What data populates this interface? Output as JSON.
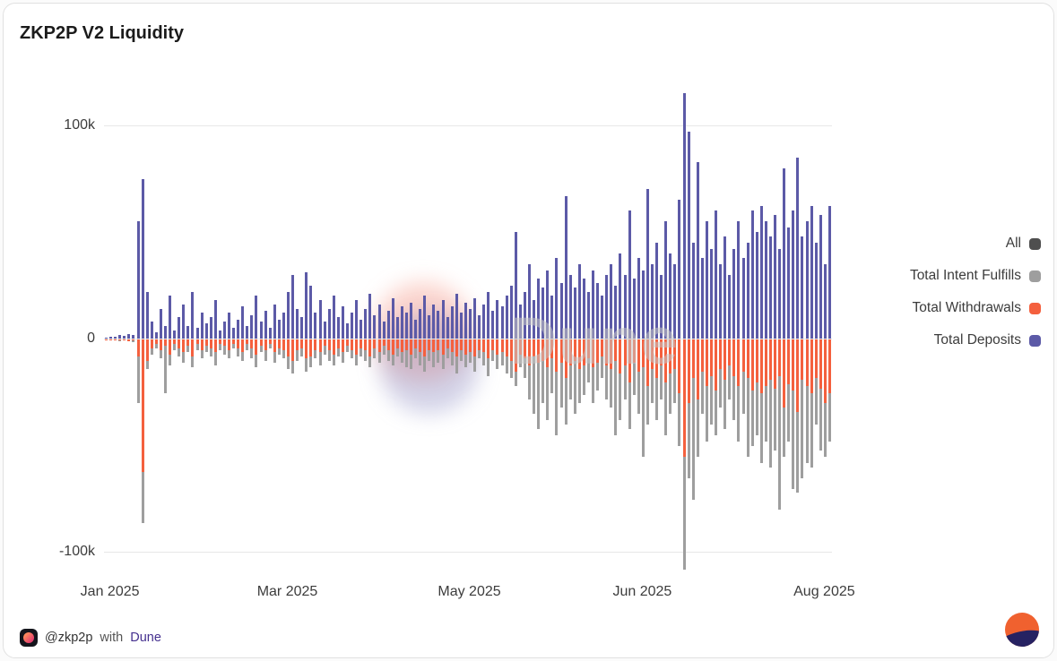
{
  "title": "ZKP2P V2 Liquidity",
  "watermark": "Dune",
  "footer": {
    "handle": "@zkp2p",
    "connector": "with",
    "brand": "Dune"
  },
  "colors": {
    "deposits": "#5C5AA7",
    "withdrawals": "#F4603E",
    "intent_fulfills": "#9E9E9E",
    "all_swatch": "#4F4F4F",
    "grid": "#E7E7E7",
    "dune_orange": "#F0612F",
    "dune_navy": "#262262"
  },
  "legend": [
    {
      "label": "All",
      "color": "#4F4F4F"
    },
    {
      "label": "Total Intent Fulfills",
      "color": "#9E9E9E"
    },
    {
      "label": "Total Withdrawals",
      "color": "#F4603E"
    },
    {
      "label": "Total Deposits",
      "color": "#5C5AA7"
    }
  ],
  "chart_data": {
    "type": "bar",
    "title": "ZKP2P V2 Liquidity",
    "xlabel": "",
    "ylabel": "",
    "values_unit": "thousands",
    "ylim_k": [
      -120,
      120
    ],
    "grid": true,
    "legend_position": "right",
    "yticks": [
      {
        "label": "100k",
        "value_k": 100
      },
      {
        "label": "0",
        "value_k": 0
      },
      {
        "label": "-100k",
        "value_k": -100
      }
    ],
    "xticks": [
      {
        "label": "Jan 2025",
        "index": 1
      },
      {
        "label": "Mar 2025",
        "index": 40
      },
      {
        "label": "May 2025",
        "index": 80
      },
      {
        "label": "Jun 2025",
        "index": 118
      },
      {
        "label": "Aug 2025",
        "index": 158
      }
    ],
    "series": [
      {
        "name": "Total Deposits",
        "color": "#5C5AA7",
        "values_k": [
          0.5,
          1,
          0.8,
          1.5,
          1.2,
          2,
          1.5,
          55,
          75,
          22,
          8,
          3,
          14,
          6,
          20,
          4,
          10,
          16,
          6,
          22,
          5,
          12,
          7,
          10,
          18,
          4,
          8,
          12,
          5,
          9,
          15,
          6,
          11,
          20,
          8,
          13,
          5,
          16,
          9,
          12,
          22,
          30,
          14,
          10,
          31,
          25,
          12,
          18,
          8,
          14,
          20,
          10,
          15,
          7,
          12,
          18,
          9,
          14,
          21,
          11,
          16,
          8,
          13,
          19,
          10,
          15,
          12,
          17,
          9,
          14,
          20,
          11,
          16,
          13,
          18,
          10,
          15,
          21,
          12,
          17,
          14,
          19,
          11,
          16,
          22,
          13,
          18,
          15,
          20,
          25,
          50,
          16,
          22,
          35,
          18,
          28,
          24,
          32,
          20,
          38,
          26,
          67,
          30,
          24,
          35,
          28,
          22,
          32,
          26,
          20,
          30,
          35,
          25,
          40,
          30,
          60,
          28,
          38,
          32,
          70,
          35,
          45,
          30,
          55,
          40,
          35,
          65,
          115,
          97,
          45,
          83,
          38,
          55,
          42,
          60,
          35,
          48,
          30,
          42,
          55,
          38,
          45,
          60,
          50,
          62,
          55,
          48,
          58,
          42,
          80,
          52,
          60,
          85,
          48,
          55,
          62,
          45,
          58,
          35,
          62
        ]
      },
      {
        "name": "Total Withdrawals",
        "color": "#F4603E",
        "values_k": [
          -0.2,
          -0.4,
          -0.3,
          -0.5,
          -0.4,
          -0.8,
          -0.6,
          -8,
          -62,
          -10,
          -4,
          -2,
          -5,
          -3,
          -7,
          -2,
          -4,
          -6,
          -3,
          -8,
          -2,
          -5,
          -3,
          -4,
          -6,
          -2,
          -3,
          -5,
          -2,
          -4,
          -6,
          -2,
          -4,
          -7,
          -3,
          -5,
          -2,
          -6,
          -4,
          -5,
          -8,
          -10,
          -5,
          -4,
          -9,
          -8,
          -5,
          -6,
          -3,
          -5,
          -7,
          -4,
          -6,
          -3,
          -5,
          -7,
          -4,
          -5,
          -8,
          -4,
          -6,
          -3,
          -5,
          -7,
          -4,
          -6,
          -5,
          -7,
          -4,
          -6,
          -8,
          -5,
          -6,
          -5,
          -7,
          -4,
          -6,
          -8,
          -5,
          -7,
          -6,
          -8,
          -5,
          -6,
          -9,
          -5,
          -7,
          -6,
          -8,
          -10,
          -15,
          -7,
          -9,
          -12,
          -8,
          -11,
          -10,
          -13,
          -9,
          -15,
          -11,
          -18,
          -12,
          -10,
          -14,
          -12,
          -9,
          -13,
          -11,
          -8,
          -12,
          -14,
          -10,
          -16,
          -12,
          -20,
          -11,
          -15,
          -13,
          -22,
          -14,
          -18,
          -12,
          -20,
          -16,
          -14,
          -25,
          -55,
          -30,
          -18,
          -28,
          -15,
          -22,
          -17,
          -24,
          -14,
          -19,
          -12,
          -17,
          -22,
          -15,
          -18,
          -24,
          -20,
          -25,
          -22,
          -19,
          -23,
          -17,
          -32,
          -21,
          -24,
          -34,
          -19,
          -22,
          -25,
          -18,
          -23,
          -30,
          -25
        ]
      },
      {
        "name": "Total Intent Fulfills",
        "color": "#9E9E9E",
        "values_k": [
          -0.3,
          -0.5,
          -0.6,
          -0.8,
          -0.6,
          -1,
          -1.2,
          -30,
          -86,
          -14,
          -7,
          -4,
          -9,
          -25,
          -12,
          -5,
          -8,
          -11,
          -6,
          -13,
          -5,
          -9,
          -6,
          -8,
          -12,
          -5,
          -7,
          -9,
          -4,
          -8,
          -10,
          -5,
          -9,
          -13,
          -6,
          -10,
          -4,
          -11,
          -7,
          -9,
          -14,
          -16,
          -10,
          -8,
          -15,
          -13,
          -9,
          -12,
          -7,
          -10,
          -12,
          -8,
          -11,
          -6,
          -9,
          -12,
          -8,
          -10,
          -13,
          -9,
          -11,
          -7,
          -10,
          -12,
          -8,
          -11,
          -13,
          -14,
          -9,
          -12,
          -15,
          -10,
          -13,
          -11,
          -14,
          -9,
          -12,
          -16,
          -10,
          -13,
          -11,
          -15,
          -9,
          -12,
          -17,
          -10,
          -14,
          -12,
          -16,
          -18,
          -22,
          -13,
          -18,
          -28,
          -35,
          -42,
          -30,
          -38,
          -25,
          -45,
          -32,
          -40,
          -28,
          -35,
          -30,
          -26,
          -20,
          -30,
          -24,
          -18,
          -28,
          -32,
          -45,
          -38,
          -28,
          -42,
          -26,
          -35,
          -55,
          -40,
          -30,
          -38,
          -28,
          -45,
          -35,
          -30,
          -50,
          -108,
          -65,
          -75,
          -55,
          -35,
          -48,
          -40,
          -45,
          -32,
          -42,
          -28,
          -38,
          -48,
          -35,
          -55,
          -50,
          -45,
          -58,
          -48,
          -60,
          -52,
          -80,
          -55,
          -48,
          -70,
          -72,
          -65,
          -58,
          -60,
          -40,
          -52,
          -55,
          -48
        ]
      }
    ]
  }
}
